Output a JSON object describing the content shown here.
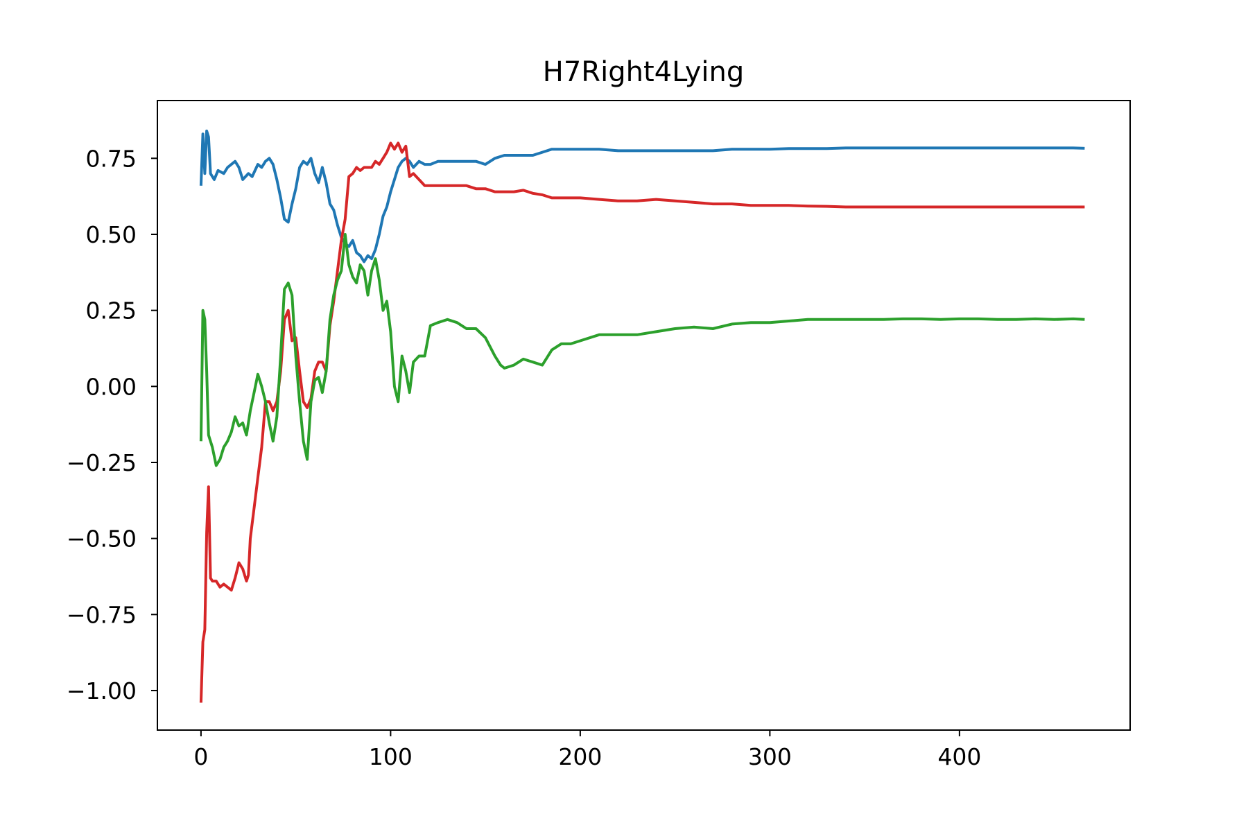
{
  "chart_data": {
    "type": "line",
    "title": "H7Right4Lying",
    "xlabel": "",
    "ylabel": "",
    "xlim": [
      -23,
      490
    ],
    "ylim": [
      -1.13,
      0.94
    ],
    "x_ticks": [
      0,
      100,
      200,
      300,
      400
    ],
    "x_tick_labels": [
      "0",
      "100",
      "200",
      "300",
      "400"
    ],
    "y_ticks": [
      0.75,
      0.5,
      0.25,
      0.0,
      -0.25,
      -0.5,
      -0.75,
      -1.0
    ],
    "y_tick_labels": [
      "0.75",
      "0.50",
      "0.25",
      "0.00",
      "−0.25",
      "−0.50",
      "−0.75",
      "−1.00"
    ],
    "grid": false,
    "series": [
      {
        "color": "#1f77b4",
        "points": [
          [
            0,
            0.66
          ],
          [
            1,
            0.83
          ],
          [
            2,
            0.7
          ],
          [
            3,
            0.84
          ],
          [
            4,
            0.82
          ],
          [
            5,
            0.7
          ],
          [
            7,
            0.68
          ],
          [
            9,
            0.71
          ],
          [
            12,
            0.7
          ],
          [
            14,
            0.72
          ],
          [
            16,
            0.73
          ],
          [
            18,
            0.74
          ],
          [
            20,
            0.72
          ],
          [
            22,
            0.68
          ],
          [
            25,
            0.7
          ],
          [
            27,
            0.69
          ],
          [
            30,
            0.73
          ],
          [
            32,
            0.72
          ],
          [
            34,
            0.74
          ],
          [
            36,
            0.75
          ],
          [
            38,
            0.73
          ],
          [
            40,
            0.68
          ],
          [
            42,
            0.62
          ],
          [
            44,
            0.55
          ],
          [
            46,
            0.54
          ],
          [
            48,
            0.6
          ],
          [
            50,
            0.65
          ],
          [
            52,
            0.72
          ],
          [
            54,
            0.74
          ],
          [
            56,
            0.73
          ],
          [
            58,
            0.75
          ],
          [
            60,
            0.7
          ],
          [
            62,
            0.67
          ],
          [
            64,
            0.72
          ],
          [
            66,
            0.67
          ],
          [
            68,
            0.6
          ],
          [
            70,
            0.58
          ],
          [
            72,
            0.53
          ],
          [
            74,
            0.49
          ],
          [
            76,
            0.47
          ],
          [
            78,
            0.46
          ],
          [
            80,
            0.48
          ],
          [
            82,
            0.44
          ],
          [
            84,
            0.43
          ],
          [
            86,
            0.41
          ],
          [
            88,
            0.43
          ],
          [
            90,
            0.42
          ],
          [
            92,
            0.45
          ],
          [
            94,
            0.5
          ],
          [
            96,
            0.56
          ],
          [
            98,
            0.59
          ],
          [
            100,
            0.64
          ],
          [
            102,
            0.68
          ],
          [
            104,
            0.72
          ],
          [
            106,
            0.74
          ],
          [
            108,
            0.75
          ],
          [
            110,
            0.74
          ],
          [
            112,
            0.72
          ],
          [
            115,
            0.74
          ],
          [
            118,
            0.73
          ],
          [
            121,
            0.73
          ],
          [
            125,
            0.74
          ],
          [
            130,
            0.74
          ],
          [
            135,
            0.74
          ],
          [
            140,
            0.74
          ],
          [
            145,
            0.74
          ],
          [
            150,
            0.73
          ],
          [
            155,
            0.75
          ],
          [
            160,
            0.76
          ],
          [
            165,
            0.76
          ],
          [
            170,
            0.76
          ],
          [
            175,
            0.76
          ],
          [
            180,
            0.77
          ],
          [
            185,
            0.78
          ],
          [
            190,
            0.78
          ],
          [
            200,
            0.78
          ],
          [
            210,
            0.78
          ],
          [
            220,
            0.775
          ],
          [
            230,
            0.775
          ],
          [
            240,
            0.775
          ],
          [
            250,
            0.775
          ],
          [
            260,
            0.775
          ],
          [
            270,
            0.775
          ],
          [
            280,
            0.78
          ],
          [
            290,
            0.78
          ],
          [
            300,
            0.78
          ],
          [
            310,
            0.782
          ],
          [
            320,
            0.782
          ],
          [
            330,
            0.782
          ],
          [
            340,
            0.784
          ],
          [
            350,
            0.784
          ],
          [
            360,
            0.784
          ],
          [
            370,
            0.784
          ],
          [
            380,
            0.784
          ],
          [
            390,
            0.784
          ],
          [
            400,
            0.784
          ],
          [
            410,
            0.784
          ],
          [
            420,
            0.784
          ],
          [
            430,
            0.784
          ],
          [
            440,
            0.784
          ],
          [
            450,
            0.784
          ],
          [
            460,
            0.784
          ],
          [
            466,
            0.783
          ]
        ]
      },
      {
        "color": "#d62728",
        "points": [
          [
            0,
            -1.04
          ],
          [
            1,
            -0.84
          ],
          [
            2,
            -0.8
          ],
          [
            3,
            -0.48
          ],
          [
            4,
            -0.33
          ],
          [
            5,
            -0.63
          ],
          [
            6,
            -0.64
          ],
          [
            8,
            -0.64
          ],
          [
            10,
            -0.66
          ],
          [
            12,
            -0.65
          ],
          [
            14,
            -0.66
          ],
          [
            16,
            -0.67
          ],
          [
            18,
            -0.63
          ],
          [
            20,
            -0.58
          ],
          [
            22,
            -0.6
          ],
          [
            24,
            -0.64
          ],
          [
            25,
            -0.62
          ],
          [
            26,
            -0.5
          ],
          [
            28,
            -0.4
          ],
          [
            30,
            -0.3
          ],
          [
            32,
            -0.2
          ],
          [
            34,
            -0.05
          ],
          [
            36,
            -0.05
          ],
          [
            38,
            -0.08
          ],
          [
            40,
            -0.05
          ],
          [
            42,
            0.05
          ],
          [
            44,
            0.22
          ],
          [
            46,
            0.25
          ],
          [
            48,
            0.15
          ],
          [
            50,
            0.16
          ],
          [
            52,
            0.05
          ],
          [
            54,
            -0.05
          ],
          [
            56,
            -0.07
          ],
          [
            58,
            -0.04
          ],
          [
            60,
            0.05
          ],
          [
            62,
            0.08
          ],
          [
            64,
            0.08
          ],
          [
            66,
            0.05
          ],
          [
            68,
            0.2
          ],
          [
            70,
            0.28
          ],
          [
            72,
            0.38
          ],
          [
            74,
            0.48
          ],
          [
            76,
            0.55
          ],
          [
            78,
            0.69
          ],
          [
            80,
            0.7
          ],
          [
            82,
            0.72
          ],
          [
            84,
            0.71
          ],
          [
            86,
            0.72
          ],
          [
            88,
            0.72
          ],
          [
            90,
            0.72
          ],
          [
            92,
            0.74
          ],
          [
            94,
            0.73
          ],
          [
            96,
            0.75
          ],
          [
            98,
            0.77
          ],
          [
            100,
            0.8
          ],
          [
            102,
            0.78
          ],
          [
            104,
            0.8
          ],
          [
            106,
            0.77
          ],
          [
            108,
            0.79
          ],
          [
            110,
            0.69
          ],
          [
            112,
            0.7
          ],
          [
            115,
            0.68
          ],
          [
            118,
            0.66
          ],
          [
            121,
            0.66
          ],
          [
            125,
            0.66
          ],
          [
            130,
            0.66
          ],
          [
            135,
            0.66
          ],
          [
            140,
            0.66
          ],
          [
            145,
            0.65
          ],
          [
            150,
            0.65
          ],
          [
            155,
            0.64
          ],
          [
            160,
            0.64
          ],
          [
            165,
            0.64
          ],
          [
            170,
            0.645
          ],
          [
            175,
            0.635
          ],
          [
            180,
            0.63
          ],
          [
            185,
            0.62
          ],
          [
            190,
            0.62
          ],
          [
            200,
            0.62
          ],
          [
            210,
            0.615
          ],
          [
            220,
            0.61
          ],
          [
            230,
            0.61
          ],
          [
            240,
            0.615
          ],
          [
            250,
            0.61
          ],
          [
            260,
            0.605
          ],
          [
            270,
            0.6
          ],
          [
            280,
            0.6
          ],
          [
            290,
            0.595
          ],
          [
            300,
            0.595
          ],
          [
            310,
            0.595
          ],
          [
            320,
            0.593
          ],
          [
            330,
            0.592
          ],
          [
            340,
            0.59
          ],
          [
            350,
            0.59
          ],
          [
            360,
            0.59
          ],
          [
            370,
            0.59
          ],
          [
            380,
            0.59
          ],
          [
            390,
            0.59
          ],
          [
            400,
            0.59
          ],
          [
            410,
            0.59
          ],
          [
            420,
            0.59
          ],
          [
            430,
            0.59
          ],
          [
            440,
            0.59
          ],
          [
            450,
            0.59
          ],
          [
            460,
            0.59
          ],
          [
            466,
            0.59
          ]
        ]
      },
      {
        "color": "#2ca02c",
        "points": [
          [
            0,
            -0.18
          ],
          [
            1,
            0.25
          ],
          [
            2,
            0.22
          ],
          [
            3,
            0.05
          ],
          [
            4,
            -0.16
          ],
          [
            6,
            -0.2
          ],
          [
            8,
            -0.26
          ],
          [
            10,
            -0.24
          ],
          [
            12,
            -0.2
          ],
          [
            14,
            -0.18
          ],
          [
            16,
            -0.15
          ],
          [
            18,
            -0.1
          ],
          [
            20,
            -0.13
          ],
          [
            22,
            -0.12
          ],
          [
            24,
            -0.16
          ],
          [
            26,
            -0.08
          ],
          [
            28,
            -0.02
          ],
          [
            30,
            0.04
          ],
          [
            32,
            0.0
          ],
          [
            34,
            -0.05
          ],
          [
            36,
            -0.12
          ],
          [
            38,
            -0.18
          ],
          [
            40,
            -0.1
          ],
          [
            42,
            0.1
          ],
          [
            44,
            0.32
          ],
          [
            46,
            0.34
          ],
          [
            48,
            0.3
          ],
          [
            50,
            0.1
          ],
          [
            52,
            -0.05
          ],
          [
            54,
            -0.18
          ],
          [
            56,
            -0.24
          ],
          [
            58,
            -0.05
          ],
          [
            60,
            0.02
          ],
          [
            62,
            0.03
          ],
          [
            64,
            -0.02
          ],
          [
            66,
            0.05
          ],
          [
            68,
            0.22
          ],
          [
            70,
            0.3
          ],
          [
            72,
            0.35
          ],
          [
            74,
            0.38
          ],
          [
            76,
            0.5
          ],
          [
            78,
            0.4
          ],
          [
            80,
            0.36
          ],
          [
            82,
            0.34
          ],
          [
            84,
            0.4
          ],
          [
            86,
            0.38
          ],
          [
            88,
            0.3
          ],
          [
            90,
            0.38
          ],
          [
            92,
            0.42
          ],
          [
            94,
            0.35
          ],
          [
            96,
            0.25
          ],
          [
            98,
            0.28
          ],
          [
            100,
            0.18
          ],
          [
            102,
            0.0
          ],
          [
            104,
            -0.05
          ],
          [
            106,
            0.1
          ],
          [
            108,
            0.05
          ],
          [
            110,
            -0.02
          ],
          [
            112,
            0.08
          ],
          [
            115,
            0.1
          ],
          [
            118,
            0.1
          ],
          [
            121,
            0.2
          ],
          [
            125,
            0.21
          ],
          [
            130,
            0.22
          ],
          [
            135,
            0.21
          ],
          [
            140,
            0.19
          ],
          [
            145,
            0.19
          ],
          [
            150,
            0.16
          ],
          [
            155,
            0.1
          ],
          [
            158,
            0.07
          ],
          [
            160,
            0.06
          ],
          [
            165,
            0.07
          ],
          [
            170,
            0.09
          ],
          [
            175,
            0.08
          ],
          [
            180,
            0.07
          ],
          [
            185,
            0.12
          ],
          [
            190,
            0.14
          ],
          [
            195,
            0.14
          ],
          [
            200,
            0.15
          ],
          [
            210,
            0.17
          ],
          [
            220,
            0.17
          ],
          [
            230,
            0.17
          ],
          [
            240,
            0.18
          ],
          [
            250,
            0.19
          ],
          [
            260,
            0.195
          ],
          [
            270,
            0.19
          ],
          [
            280,
            0.205
          ],
          [
            290,
            0.21
          ],
          [
            300,
            0.21
          ],
          [
            310,
            0.215
          ],
          [
            320,
            0.22
          ],
          [
            330,
            0.22
          ],
          [
            340,
            0.22
          ],
          [
            350,
            0.22
          ],
          [
            360,
            0.22
          ],
          [
            370,
            0.222
          ],
          [
            380,
            0.222
          ],
          [
            390,
            0.22
          ],
          [
            400,
            0.222
          ],
          [
            410,
            0.222
          ],
          [
            420,
            0.22
          ],
          [
            430,
            0.22
          ],
          [
            440,
            0.222
          ],
          [
            450,
            0.22
          ],
          [
            460,
            0.222
          ],
          [
            466,
            0.22
          ]
        ]
      }
    ]
  }
}
